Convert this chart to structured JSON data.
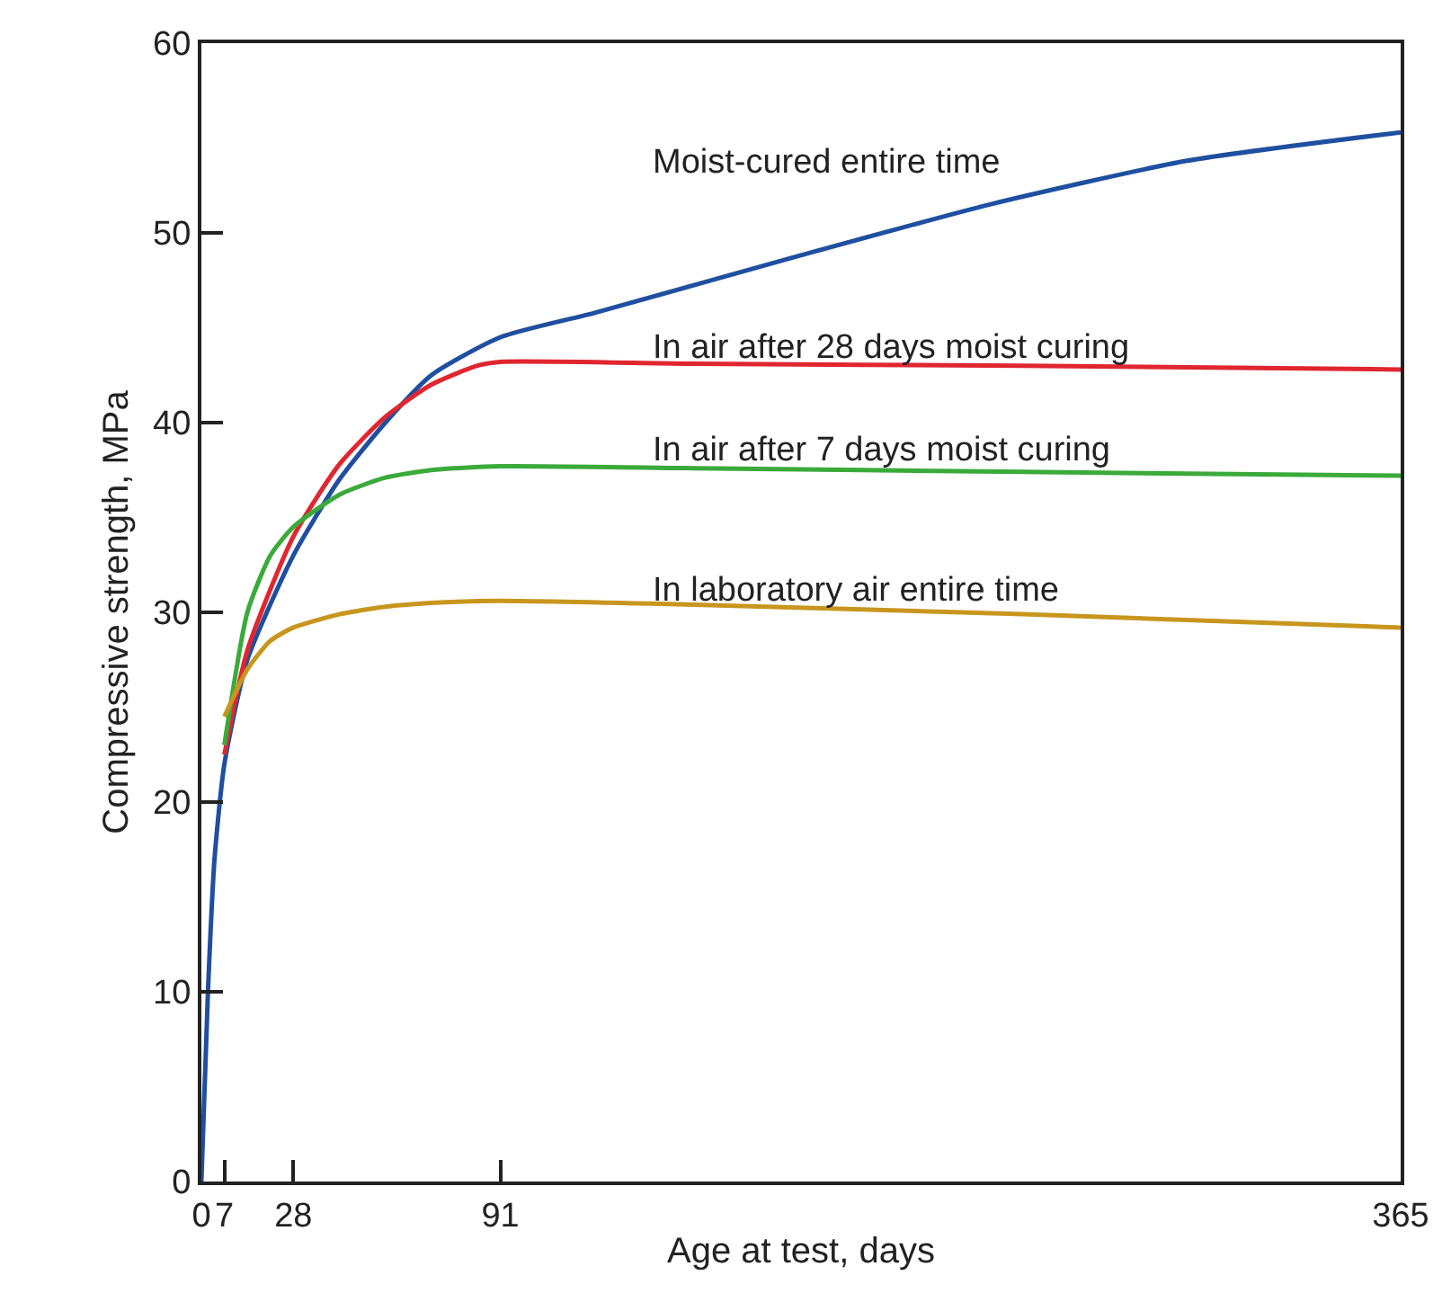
{
  "chart_data": {
    "type": "line",
    "xlabel": "Age at test, days",
    "ylabel": "Compressive strength, MPa",
    "xlim": [
      0,
      365
    ],
    "xticks": [
      0,
      7,
      28,
      91,
      365
    ],
    "ylim": [
      0,
      60
    ],
    "yticks": [
      0,
      10,
      20,
      30,
      40,
      50,
      60
    ],
    "legend": false,
    "marker": "none",
    "line_style": "solid",
    "series": [
      {
        "name": "Moist-cured entire time",
        "color": "#1f4fa0",
        "x": [
          0,
          2,
          4,
          7,
          14,
          28,
          42,
          56,
          70,
          91,
          120,
          180,
          240,
          300,
          365
        ],
        "values": [
          0,
          10,
          17,
          22,
          27.5,
          33,
          37,
          40,
          42.5,
          44.5,
          45.8,
          48.7,
          51.5,
          53.8,
          55.3
        ]
      },
      {
        "name": "In air after 28 days moist curing",
        "color": "#e0262f",
        "x": [
          7,
          14,
          28,
          42,
          56,
          70,
          84,
          91,
          150,
          250,
          365
        ],
        "values": [
          22.5,
          28,
          34,
          37.8,
          40.3,
          42,
          43,
          43.2,
          43.1,
          43,
          42.8
        ]
      },
      {
        "name": "In air after 7 days moist curing",
        "color": "#3aaa3a",
        "x": [
          7,
          14,
          21,
          28,
          42,
          56,
          70,
          91,
          150,
          250,
          365
        ],
        "values": [
          23,
          30,
          33,
          34.5,
          36.2,
          37.1,
          37.5,
          37.7,
          37.6,
          37.4,
          37.2
        ]
      },
      {
        "name": "In laboratory air entire time",
        "color": "#c8961e",
        "x": [
          7,
          14,
          21,
          28,
          42,
          56,
          70,
          91,
          150,
          250,
          365
        ],
        "values": [
          24.5,
          27,
          28.5,
          29.2,
          29.9,
          30.3,
          30.5,
          30.6,
          30.4,
          29.9,
          29.2
        ]
      }
    ]
  }
}
